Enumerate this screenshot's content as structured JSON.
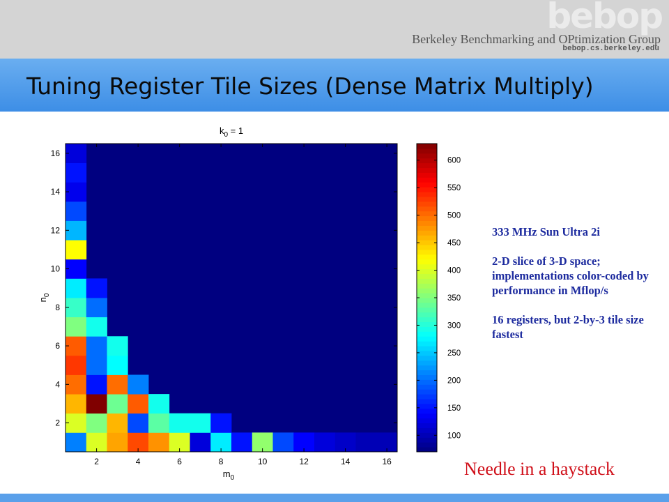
{
  "header": {
    "logo": "bebop",
    "group_name": "Berkeley Benchmarking and OPtimization Group",
    "group_url": "bebop.cs.berkeley.edu"
  },
  "slide_title": "Tuning Register Tile Sizes (Dense Matrix Multiply)",
  "notes": [
    "333 MHz Sun Ultra 2i",
    "2-D slice of 3-D space; implementations color-coded by performance in Mflop/s",
    "16 registers, but 2-by-3 tile size fastest"
  ],
  "callout": "Needle in a haystack",
  "chart_data": {
    "type": "heatmap",
    "title": "k0 = 1",
    "xlabel": "m0",
    "ylabel": "n0",
    "x": [
      1,
      2,
      3,
      4,
      5,
      6,
      7,
      8,
      9,
      10,
      11,
      12,
      13,
      14,
      15,
      16
    ],
    "y": [
      1,
      2,
      3,
      4,
      5,
      6,
      7,
      8,
      9,
      10,
      11,
      12,
      13,
      14,
      15,
      16
    ],
    "xticks": [
      2,
      4,
      6,
      8,
      10,
      12,
      14,
      16
    ],
    "yticks": [
      2,
      4,
      6,
      8,
      10,
      12,
      14,
      16
    ],
    "colorbar_ticks": [
      100,
      150,
      200,
      250,
      300,
      350,
      400,
      450,
      500,
      550,
      600
    ],
    "clim": [
      70,
      630
    ],
    "fill_value": 70,
    "rows": [
      {
        "n": 1,
        "values": [
          210,
          400,
          470,
          520,
          480,
          400,
          120,
          270,
          150,
          360,
          180,
          140,
          120,
          110,
          100,
          100
        ]
      },
      {
        "n": 2,
        "values": [
          400,
          350,
          460,
          180,
          330,
          290,
          290,
          150
        ]
      },
      {
        "n": 3,
        "values": [
          460,
          630,
          340,
          510,
          290
        ]
      },
      {
        "n": 4,
        "values": [
          500,
          150,
          500,
          210
        ]
      },
      {
        "n": 5,
        "values": [
          530,
          200,
          280
        ]
      },
      {
        "n": 6,
        "values": [
          510,
          200,
          290
        ]
      },
      {
        "n": 7,
        "values": [
          350,
          290
        ]
      },
      {
        "n": 8,
        "values": [
          310,
          200
        ]
      },
      {
        "n": 9,
        "values": [
          270,
          150
        ]
      },
      {
        "n": 10,
        "values": [
          140
        ]
      },
      {
        "n": 11,
        "values": [
          420
        ]
      },
      {
        "n": 12,
        "values": [
          240
        ]
      },
      {
        "n": 13,
        "values": [
          180
        ]
      },
      {
        "n": 14,
        "values": [
          130
        ]
      },
      {
        "n": 15,
        "values": [
          150
        ]
      },
      {
        "n": 16,
        "values": [
          120
        ]
      }
    ],
    "colormap": "jet"
  }
}
